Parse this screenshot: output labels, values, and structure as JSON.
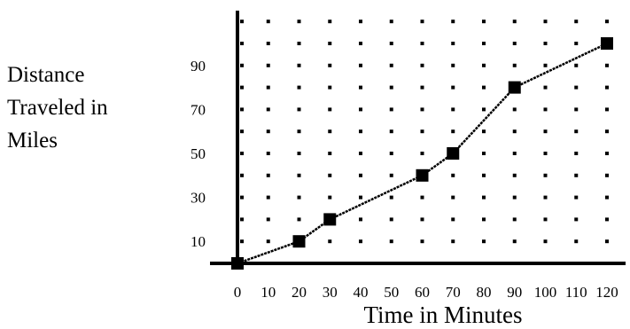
{
  "chart_data": {
    "type": "line",
    "title": "",
    "xlabel": "Time in Minutes",
    "ylabel_lines": [
      "Distance",
      "Traveled in",
      "Miles"
    ],
    "x": [
      0,
      20,
      30,
      60,
      70,
      90,
      120
    ],
    "y": [
      0,
      10,
      20,
      40,
      50,
      80,
      100
    ],
    "xlim": [
      0,
      120
    ],
    "ylim": [
      0,
      110
    ],
    "x_ticks": [
      0,
      10,
      20,
      30,
      40,
      50,
      60,
      70,
      80,
      90,
      100,
      110,
      120
    ],
    "x_tick_labels": [
      "0",
      "10",
      "20",
      "30",
      "40",
      "50",
      "60",
      "70",
      "80",
      "90",
      "100",
      "110",
      "120"
    ],
    "y_ticks": [
      10,
      30,
      50,
      70,
      90
    ],
    "y_tick_labels": [
      "10",
      "30",
      "50",
      "70",
      "90"
    ],
    "grid": "dotted",
    "marker": "square",
    "line_color": "#000000"
  }
}
